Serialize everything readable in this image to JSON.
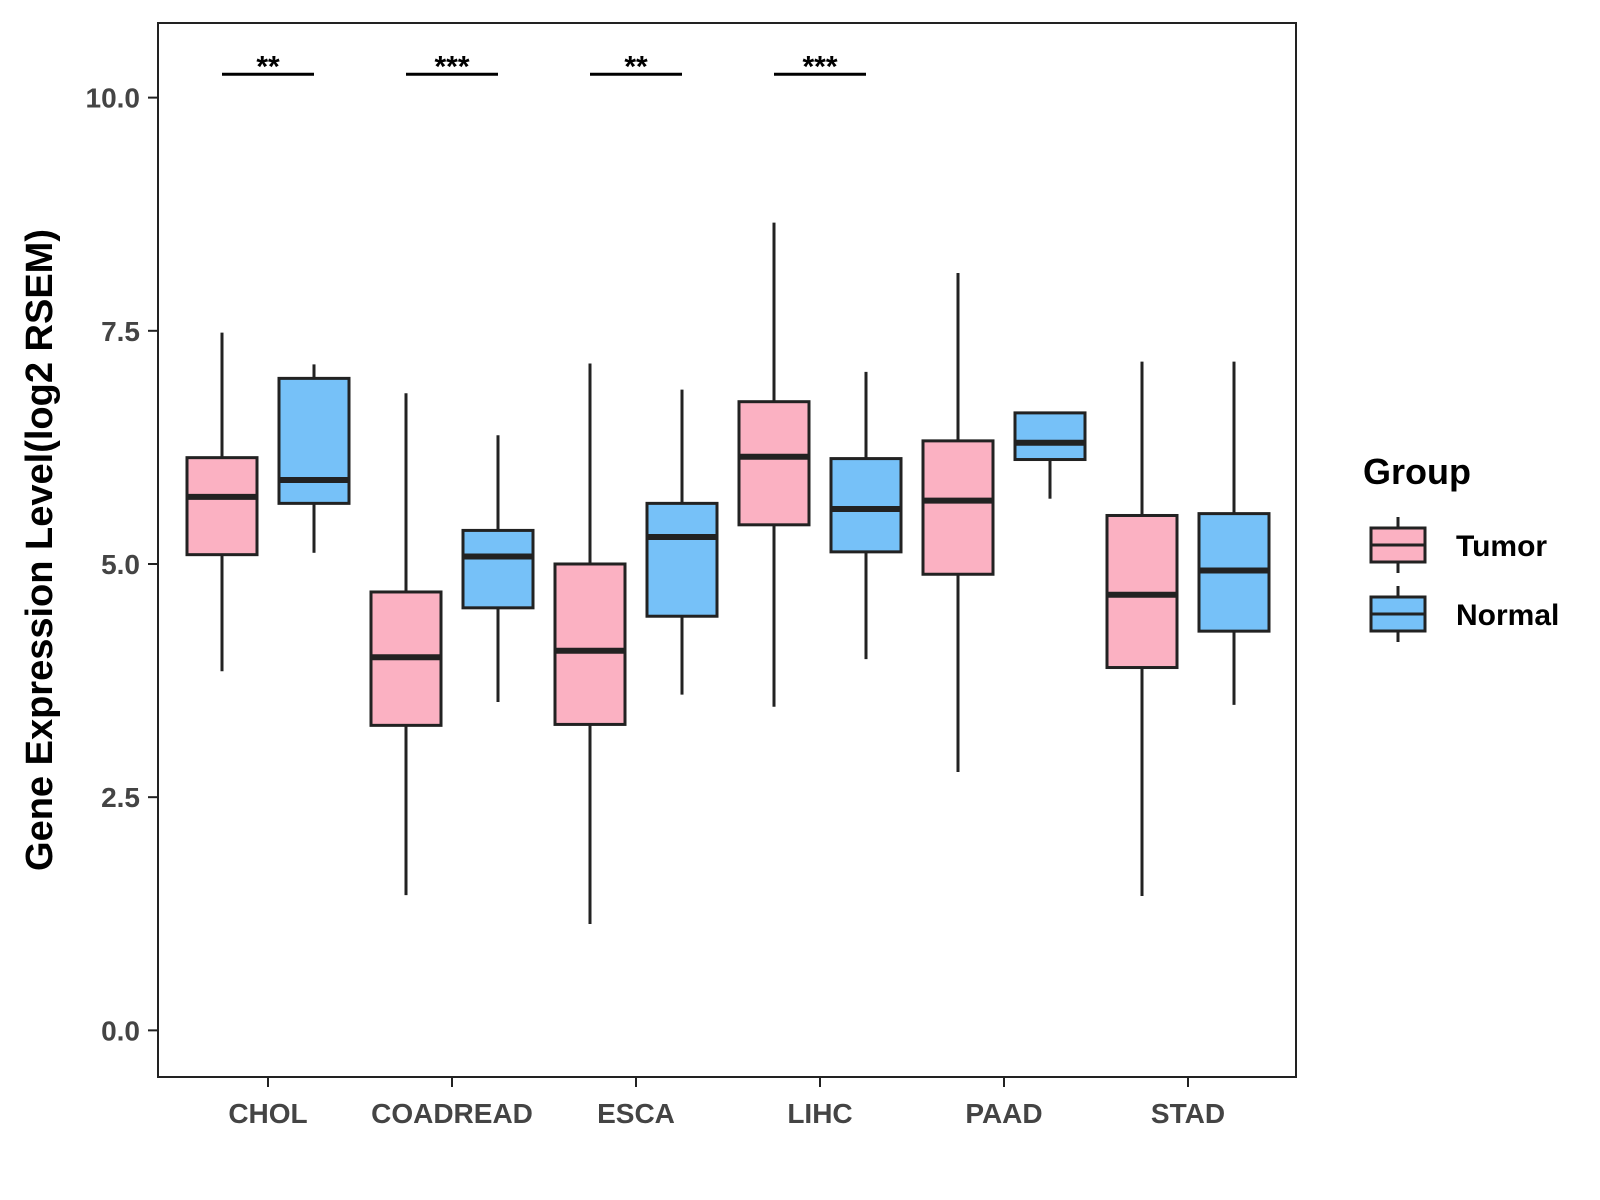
{
  "chart_data": {
    "type": "boxplot",
    "title": "",
    "xlabel": "",
    "ylabel": "Gene Expression Level(log2 RSEM)",
    "ylim": [
      -0.5,
      10.8
    ],
    "yticks": [
      0.0,
      2.5,
      5.0,
      7.5,
      10.0
    ],
    "ytick_labels": [
      "0.0",
      "2.5",
      "5.0",
      "7.5",
      "10.0"
    ],
    "categories": [
      "CHOL",
      "COADREAD",
      "ESCA",
      "LIHC",
      "PAAD",
      "STAD"
    ],
    "legend": {
      "title": "Group",
      "position": "right",
      "entries": [
        {
          "name": "Tumor",
          "color": "#fbb1c2"
        },
        {
          "name": "Normal",
          "color": "#76c1f8"
        }
      ]
    },
    "series": [
      {
        "name": "Tumor",
        "color": "#fbb1c2",
        "boxes": [
          {
            "low": 3.85,
            "q1": 5.1,
            "median": 5.72,
            "q3": 6.14,
            "high": 7.48
          },
          {
            "low": 1.45,
            "q1": 3.27,
            "median": 4.0,
            "q3": 4.7,
            "high": 6.83
          },
          {
            "low": 1.14,
            "q1": 3.28,
            "median": 4.07,
            "q3": 5.0,
            "high": 7.15
          },
          {
            "low": 3.47,
            "q1": 5.42,
            "median": 6.15,
            "q3": 6.74,
            "high": 8.66
          },
          {
            "low": 2.77,
            "q1": 4.89,
            "median": 5.68,
            "q3": 6.32,
            "high": 8.12
          },
          {
            "low": 1.44,
            "q1": 3.89,
            "median": 4.67,
            "q3": 5.52,
            "high": 7.17
          }
        ]
      },
      {
        "name": "Normal",
        "color": "#76c1f8",
        "boxes": [
          {
            "low": 5.12,
            "q1": 5.65,
            "median": 5.9,
            "q3": 6.99,
            "high": 7.14
          },
          {
            "low": 3.52,
            "q1": 4.53,
            "median": 5.08,
            "q3": 5.36,
            "high": 6.38
          },
          {
            "low": 3.6,
            "q1": 4.44,
            "median": 5.29,
            "q3": 5.65,
            "high": 6.87
          },
          {
            "low": 3.98,
            "q1": 5.13,
            "median": 5.59,
            "q3": 6.13,
            "high": 7.06
          },
          {
            "low": 5.7,
            "q1": 6.12,
            "median": 6.3,
            "q3": 6.62,
            "high": 6.62
          },
          {
            "low": 3.49,
            "q1": 4.28,
            "median": 4.93,
            "q3": 5.54,
            "high": 7.17
          }
        ]
      }
    ],
    "annotations": [
      {
        "category": "CHOL",
        "text": "**",
        "y": 10.25
      },
      {
        "category": "COADREAD",
        "text": "***",
        "y": 10.25
      },
      {
        "category": "ESCA",
        "text": "**",
        "y": 10.25
      },
      {
        "category": "LIHC",
        "text": "***",
        "y": 10.25
      }
    ]
  }
}
